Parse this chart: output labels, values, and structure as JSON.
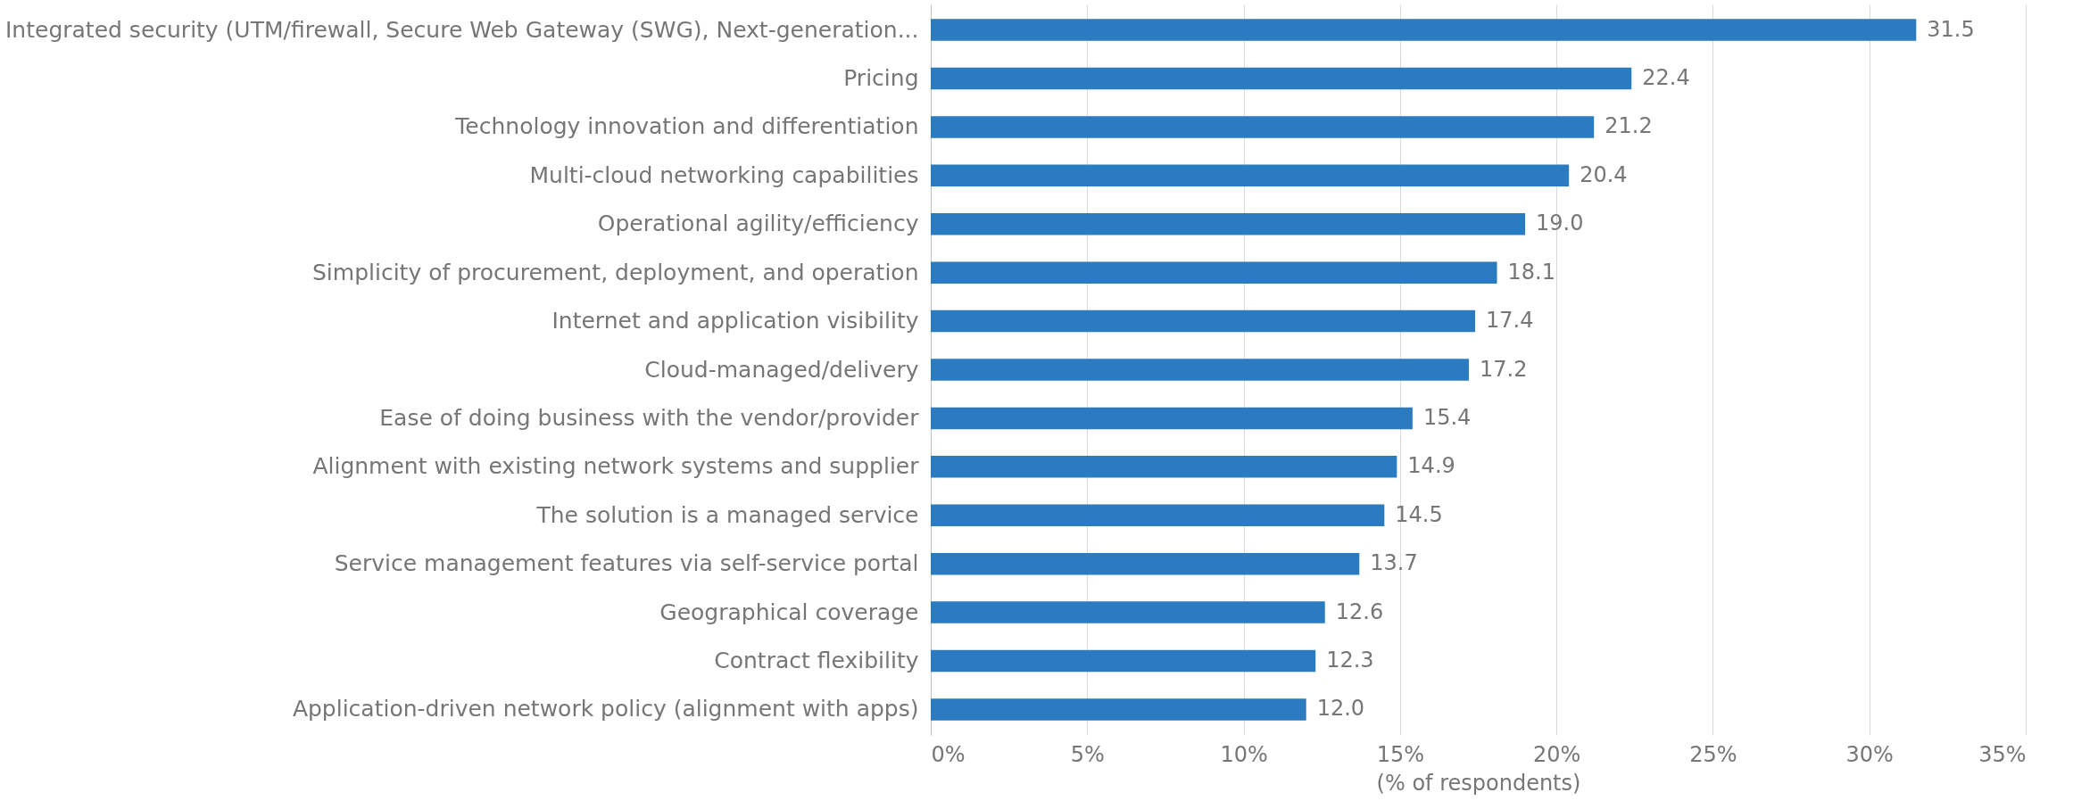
{
  "chart_data": {
    "type": "bar",
    "orientation": "horizontal",
    "xlabel": "(% of respondents)",
    "categories": [
      "Integrated security (UTM/firewall, Secure Web Gateway (SWG), Next-generation...",
      "Pricing",
      "Technology innovation and differentiation",
      "Multi-cloud networking capabilities",
      "Operational agility/efficiency",
      "Simplicity of procurement, deployment, and operation",
      "Internet and application visibility",
      "Cloud-managed/delivery",
      "Ease of doing business with the vendor/provider",
      "Alignment with existing network systems and supplier",
      "The solution is a managed service",
      "Service management features via self-service portal",
      "Geographical coverage",
      "Contract flexibility",
      "Application-driven network policy (alignment with apps)"
    ],
    "values": [
      31.5,
      22.4,
      21.2,
      20.4,
      19.0,
      18.1,
      17.4,
      17.2,
      15.4,
      14.9,
      14.5,
      13.7,
      12.6,
      12.3,
      12.0
    ],
    "value_labels": [
      "31.5",
      "22.4",
      "21.2",
      "20.4",
      "19.0",
      "18.1",
      "17.4",
      "17.2",
      "15.4",
      "14.9",
      "14.5",
      "13.7",
      "12.6",
      "12.3",
      "12.0"
    ],
    "color": "#2a7bbf",
    "xlim": [
      0,
      35
    ],
    "xticks": [
      {
        "value": 0,
        "label": "0%"
      },
      {
        "value": 5,
        "label": "5%"
      },
      {
        "value": 10,
        "label": "10%"
      },
      {
        "value": 15,
        "label": "15%"
      },
      {
        "value": 20,
        "label": "20%"
      },
      {
        "value": 25,
        "label": "25%"
      },
      {
        "value": 30,
        "label": "30%"
      },
      {
        "value": 35,
        "label": "35%"
      }
    ],
    "grid": "x"
  }
}
